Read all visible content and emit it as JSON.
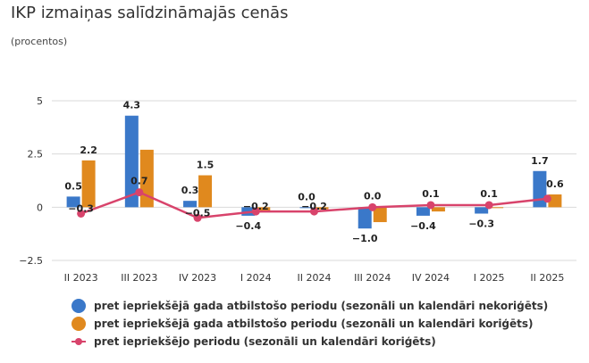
{
  "title": "IKP izmaiņas salīdzināmajās cenās",
  "subtitle": "(procentos)",
  "chart_data": {
    "type": "bar",
    "categories": [
      "II 2023",
      "III 2023",
      "IV 2023",
      "I 2024",
      "II 2024",
      "III 2024",
      "IV 2024",
      "I 2025",
      "II 2025"
    ],
    "series": [
      {
        "name": "pret iepriekšējā gada atbilstošo periodu (sezonāli un kalendāri nekoriģēts)",
        "type": "bar",
        "color": "#3A78C9",
        "values": [
          0.5,
          4.3,
          0.3,
          -0.4,
          0.0,
          -1.0,
          -0.4,
          -0.3,
          1.7
        ]
      },
      {
        "name": "pret iepriekšējā gada atbilstošo periodu (sezonāli un kalendāri koriģēts)",
        "type": "bar",
        "color": "#E0891E",
        "values": [
          2.2,
          2.7,
          1.5,
          -0.2,
          -0.1,
          -0.7,
          -0.2,
          0.0,
          0.6
        ]
      },
      {
        "name": "pret iepriekšējo periodu (sezonāli un kalendāri koriģēts)",
        "type": "line",
        "color": "#D8436B",
        "values": [
          -0.3,
          0.7,
          -0.5,
          -0.2,
          -0.2,
          0.0,
          0.1,
          0.1,
          0.4
        ]
      }
    ],
    "bar_labels": [
      {
        "series": 0,
        "index": 0,
        "text": "0.5"
      },
      {
        "series": 1,
        "index": 0,
        "text": "2.2"
      },
      {
        "series": 2,
        "index": 0,
        "text": "−0.3"
      },
      {
        "series": 0,
        "index": 1,
        "text": "4.3"
      },
      {
        "series": 2,
        "index": 1,
        "text": "0.7"
      },
      {
        "series": 0,
        "index": 2,
        "text": "0.3"
      },
      {
        "series": 1,
        "index": 2,
        "text": "1.5"
      },
      {
        "series": 2,
        "index": 2,
        "text": "−0.5"
      },
      {
        "series": 0,
        "index": 3,
        "text": "−0.4"
      },
      {
        "series": 2,
        "index": 3,
        "text": "−0.2"
      },
      {
        "series": 0,
        "index": 4,
        "text": "0.0"
      },
      {
        "series": 2,
        "index": 4,
        "text": "−0.2"
      },
      {
        "series": 0,
        "index": 5,
        "text": "−1.0"
      },
      {
        "series": 2,
        "index": 5,
        "text": "0.0"
      },
      {
        "series": 0,
        "index": 6,
        "text": "−0.4"
      },
      {
        "series": 2,
        "index": 6,
        "text": "0.1"
      },
      {
        "series": 0,
        "index": 7,
        "text": "−0.3"
      },
      {
        "series": 2,
        "index": 7,
        "text": "0.1"
      },
      {
        "series": 0,
        "index": 8,
        "text": "1.7"
      },
      {
        "series": 1,
        "index": 8,
        "text": "0.6"
      }
    ],
    "y_ticks": [
      5,
      2.5,
      0,
      -2.5
    ],
    "y_tick_labels": [
      "5",
      "2.5",
      "0",
      "−2.5"
    ],
    "ylim": [
      -2.5,
      5
    ],
    "grid": true,
    "legend_position": "bottom"
  }
}
